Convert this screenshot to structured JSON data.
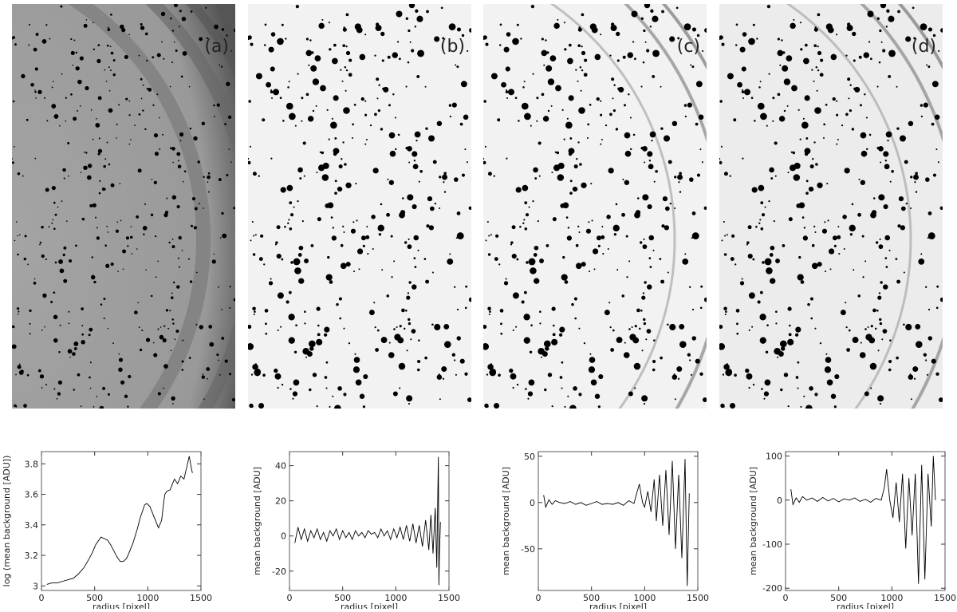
{
  "panels": [
    {
      "label": "(a)"
    },
    {
      "label": "(b)"
    },
    {
      "label": "(c)"
    },
    {
      "label": "(d)"
    }
  ],
  "chart_data": [
    {
      "type": "line",
      "xlabel": "radius [pixel]",
      "ylabel": "log (mean background [ADU])",
      "xlim": [
        0,
        1500
      ],
      "xticks": [
        0,
        500,
        1000,
        1500
      ],
      "ylim": [
        2.97,
        3.88
      ],
      "yticks": [
        3,
        3.2,
        3.4,
        3.6,
        3.8
      ],
      "color": "#000000",
      "x": [
        50,
        100,
        150,
        200,
        250,
        300,
        350,
        400,
        450,
        480,
        510,
        540,
        560,
        590,
        620,
        650,
        680,
        710,
        740,
        770,
        800,
        820,
        860,
        900,
        930,
        950,
        970,
        990,
        1020,
        1060,
        1100,
        1130,
        1150,
        1160,
        1180,
        1210,
        1250,
        1280,
        1310,
        1340,
        1370,
        1390,
        1410,
        1420
      ],
      "values": [
        3.01,
        3.02,
        3.02,
        3.03,
        3.04,
        3.05,
        3.08,
        3.12,
        3.18,
        3.22,
        3.27,
        3.3,
        3.32,
        3.31,
        3.3,
        3.27,
        3.23,
        3.19,
        3.16,
        3.16,
        3.18,
        3.21,
        3.28,
        3.37,
        3.45,
        3.49,
        3.53,
        3.54,
        3.52,
        3.45,
        3.38,
        3.43,
        3.55,
        3.6,
        3.62,
        3.63,
        3.7,
        3.67,
        3.72,
        3.7,
        3.79,
        3.85,
        3.77,
        3.74
      ]
    },
    {
      "type": "line",
      "xlabel": "radius [pixel]",
      "ylabel": "mean background [ADU]",
      "xlim": [
        0,
        1500
      ],
      "xticks": [
        0,
        500,
        1000,
        1500
      ],
      "ylim": [
        -31,
        48
      ],
      "yticks": [
        -20,
        0,
        20,
        40
      ],
      "color": "#000000",
      "x": [
        50,
        80,
        110,
        140,
        170,
        200,
        230,
        260,
        290,
        320,
        350,
        380,
        410,
        440,
        470,
        500,
        530,
        560,
        590,
        620,
        650,
        680,
        710,
        740,
        770,
        800,
        830,
        860,
        890,
        920,
        950,
        980,
        1010,
        1040,
        1070,
        1100,
        1130,
        1160,
        1190,
        1220,
        1250,
        1280,
        1310,
        1330,
        1350,
        1370,
        1385,
        1395,
        1400,
        1405,
        1410,
        1420
      ],
      "values": [
        -4,
        5,
        -2,
        4,
        -3,
        3,
        -1,
        4,
        -2,
        2,
        -3,
        3,
        0,
        4,
        -2,
        3,
        -1,
        2,
        -2,
        3,
        0,
        2,
        -1,
        3,
        1,
        2,
        -1,
        4,
        0,
        3,
        -2,
        4,
        -1,
        5,
        -2,
        6,
        -3,
        7,
        -4,
        6,
        -6,
        9,
        -8,
        12,
        -10,
        16,
        -18,
        25,
        45,
        -28,
        -10,
        8
      ]
    },
    {
      "type": "line",
      "xlabel": "radius [pixel]",
      "ylabel": "mean background [ADU]",
      "xlim": [
        0,
        1500
      ],
      "xticks": [
        0,
        500,
        1000,
        1500
      ],
      "ylim": [
        -95,
        55
      ],
      "yticks": [
        -50,
        0,
        50
      ],
      "color": "#000000",
      "x": [
        50,
        70,
        100,
        130,
        160,
        200,
        250,
        300,
        350,
        400,
        450,
        500,
        550,
        600,
        650,
        700,
        750,
        800,
        850,
        900,
        920,
        950,
        980,
        1000,
        1030,
        1060,
        1090,
        1110,
        1140,
        1170,
        1200,
        1230,
        1260,
        1290,
        1320,
        1350,
        1380,
        1400,
        1420
      ],
      "values": [
        8,
        -5,
        3,
        -2,
        2,
        0,
        -1,
        1,
        -2,
        0,
        -3,
        -1,
        1,
        -2,
        -1,
        -2,
        0,
        -3,
        2,
        -1,
        8,
        20,
        0,
        -5,
        12,
        -10,
        25,
        -20,
        30,
        -25,
        35,
        -35,
        45,
        -50,
        30,
        -60,
        47,
        -90,
        10
      ]
    },
    {
      "type": "line",
      "xlabel": "radius [pixel]",
      "ylabel": "mean background [ADU]",
      "xlim": [
        0,
        1500
      ],
      "xticks": [
        0,
        500,
        1000,
        1500
      ],
      "ylim": [
        -205,
        110
      ],
      "yticks": [
        -200,
        -100,
        0,
        100
      ],
      "color": "#000000",
      "x": [
        50,
        70,
        100,
        130,
        160,
        200,
        250,
        300,
        350,
        400,
        450,
        500,
        550,
        600,
        650,
        700,
        750,
        800,
        850,
        900,
        930,
        950,
        980,
        1010,
        1040,
        1070,
        1100,
        1130,
        1160,
        1190,
        1220,
        1250,
        1280,
        1310,
        1340,
        1370,
        1390,
        1410
      ],
      "values": [
        25,
        -10,
        5,
        -5,
        8,
        0,
        5,
        -3,
        6,
        -2,
        4,
        -4,
        3,
        0,
        5,
        -3,
        2,
        -5,
        4,
        0,
        30,
        70,
        0,
        -40,
        40,
        -50,
        60,
        -110,
        50,
        -80,
        60,
        -190,
        80,
        -180,
        60,
        -60,
        100,
        0
      ]
    }
  ]
}
